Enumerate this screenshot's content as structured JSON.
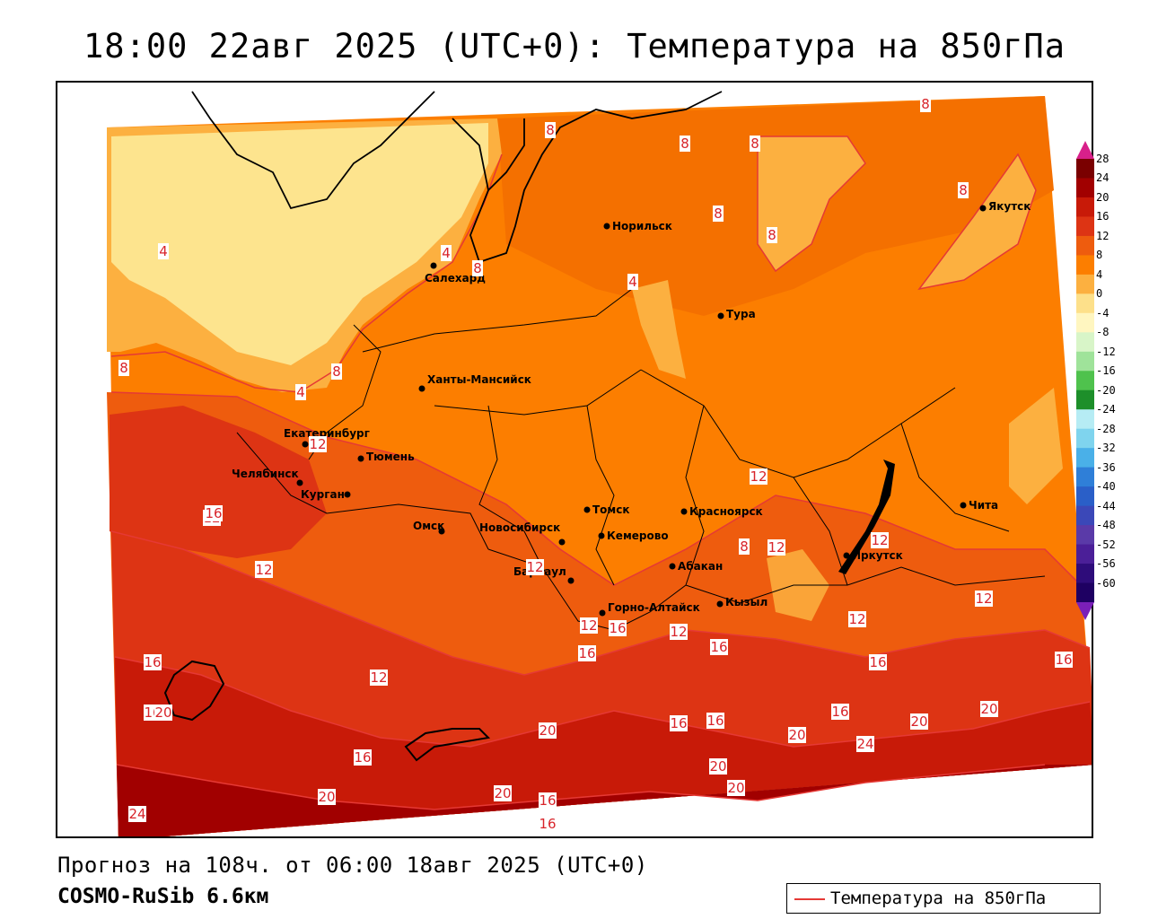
{
  "title": "18:00 22авг 2025 (UTC+0): Температура на 850гПа",
  "forecast_info": "Прогноз на 108ч. от 06:00 18авг 2025 (UTC+0)",
  "model_name": "COSMO-RuSib 6.6км",
  "legend": {
    "label": "Температура на 850гПа",
    "line_color": "#e53935"
  },
  "colorbar": {
    "labels": [
      "28",
      "24",
      "20",
      "16",
      "12",
      "8",
      "4",
      "0",
      "-4",
      "-8",
      "-12",
      "-16",
      "-20",
      "-24",
      "-28",
      "-32",
      "-36",
      "-40",
      "-44",
      "-48",
      "-52",
      "-56",
      "-60"
    ],
    "colors": [
      "#7a0000",
      "#a10000",
      "#c81a08",
      "#dd3414",
      "#ee5c0e",
      "#fc7e00",
      "#fcb040",
      "#fde08a",
      "#fff6c0",
      "#d8f5c8",
      "#9fe39a",
      "#4fc24d",
      "#1d8f2a",
      "#b6ecf4",
      "#7fd4ee",
      "#4ab0e8",
      "#2f7fd8",
      "#2a5fc8",
      "#3b48b8",
      "#5a3aa8",
      "#4b1f98",
      "#2e0c7a",
      "#1e0062"
    ],
    "top_arrow_color": "#d8208a",
    "bottom_arrow_color": "#7a1fb8"
  },
  "cities": [
    {
      "name": "Норильск"
    },
    {
      "name": "Якутск"
    },
    {
      "name": "Салехард"
    },
    {
      "name": "Тура"
    },
    {
      "name": "Ханты-Мансийск"
    },
    {
      "name": "Екатеринбург"
    },
    {
      "name": "Тюмень"
    },
    {
      "name": "Челябинск"
    },
    {
      "name": "Курган"
    },
    {
      "name": "Омск"
    },
    {
      "name": "Новосибирск"
    },
    {
      "name": "Томск"
    },
    {
      "name": "Кемерово"
    },
    {
      "name": "Красноярск"
    },
    {
      "name": "Барнаул"
    },
    {
      "name": "Абакан"
    },
    {
      "name": "Горно-Алтайск"
    },
    {
      "name": "Кызыл"
    },
    {
      "name": "Иркутск"
    },
    {
      "name": "Чита"
    }
  ],
  "isotherm_labels": [
    "8",
    "8",
    "8",
    "8",
    "8",
    "8",
    "8",
    "4",
    "4",
    "8",
    "4",
    "8",
    "4",
    "8",
    "12",
    "12",
    "12",
    "12",
    "12",
    "8",
    "12",
    "12",
    "12",
    "12",
    "12",
    "16",
    "16",
    "16",
    "16",
    "16",
    "16",
    "16",
    "16",
    "16",
    "16",
    "20",
    "20",
    "20",
    "20",
    "20",
    "20",
    "20",
    "24",
    "24",
    "20",
    "16",
    "16",
    "16",
    "12",
    "12",
    "16",
    "20",
    "12"
  ],
  "colors": {
    "cold_zone": "#fde48e",
    "mid_zone": "#fcb040",
    "base_zone": "#fc7e00",
    "warm_zone": "#ee5c0e",
    "hot_zone": "#dd3414",
    "hotter_zone": "#c81a08",
    "hottest_zone": "#a10000",
    "isoline": "#e53935",
    "isolabel": "#d8242a"
  }
}
